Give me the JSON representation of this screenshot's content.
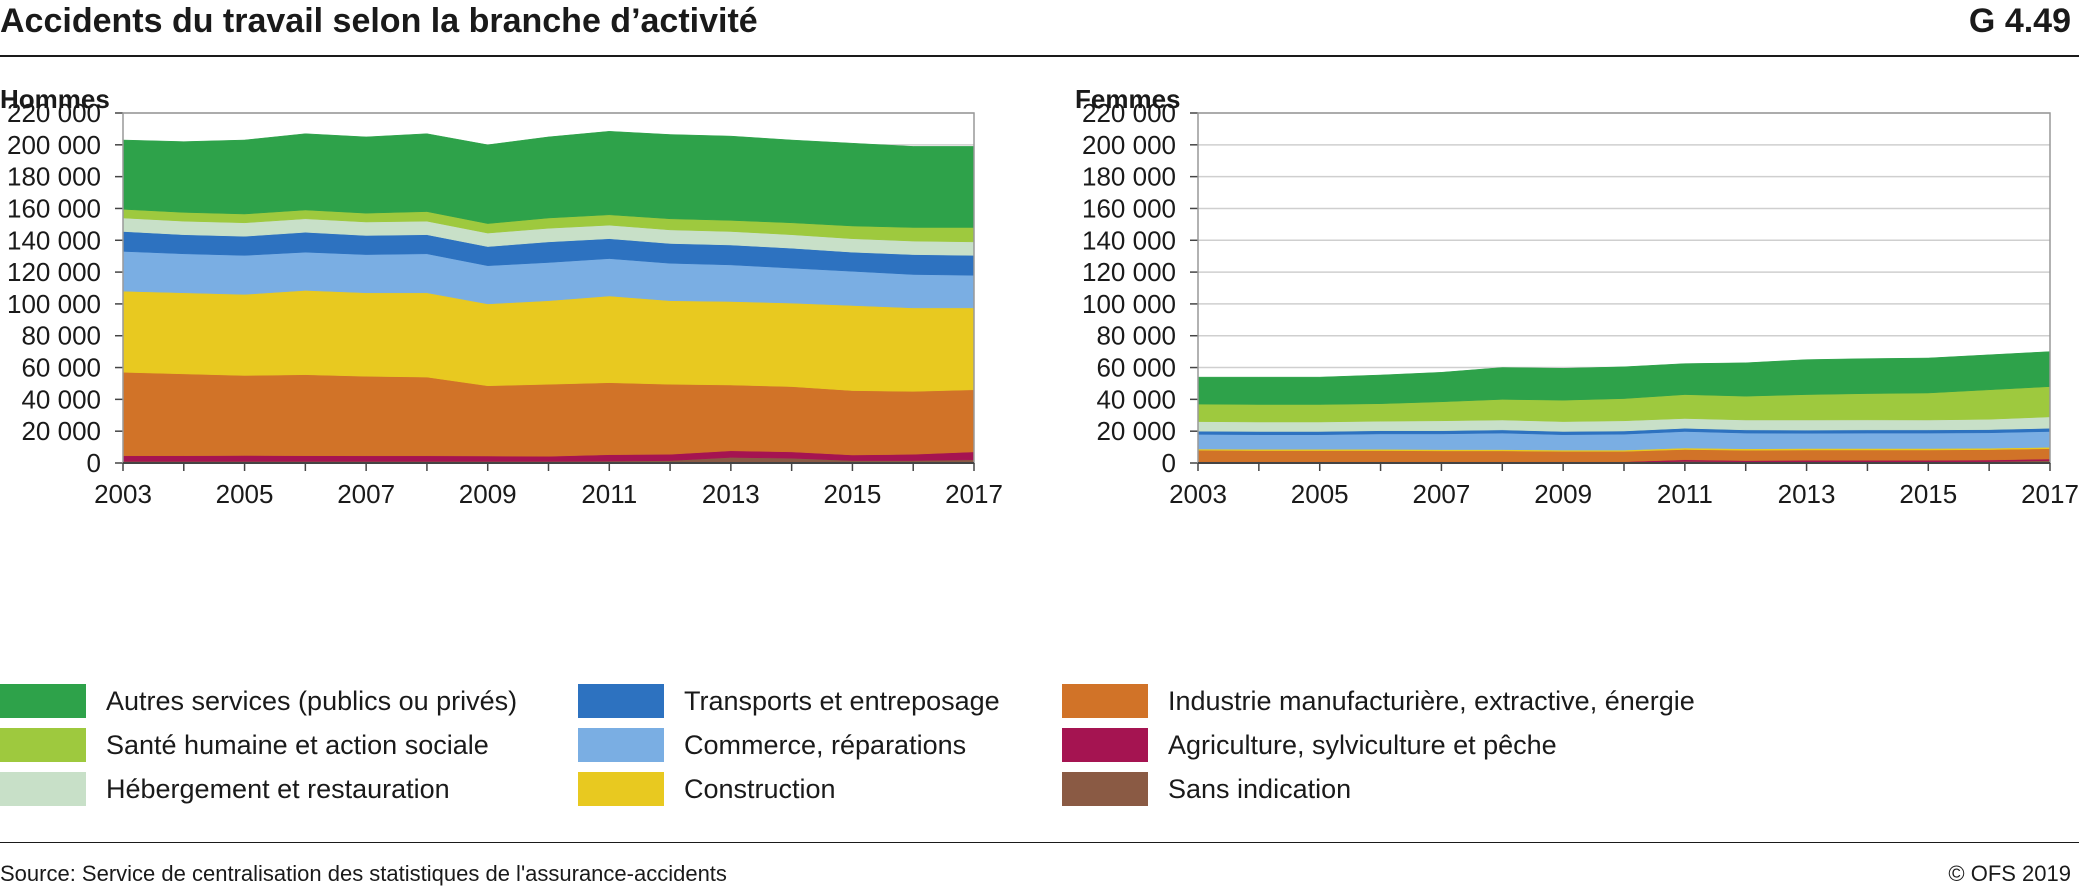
{
  "header": {
    "title": "Accidents du travail selon la branche d’activité",
    "code": "G 4.49"
  },
  "footer": {
    "source": "Source: Service de centralisation des statistiques de l'assurance-accidents",
    "copyright": "© OFS 2019"
  },
  "colors": {
    "sans": "#8a5a44",
    "agri": "#a51451",
    "indus": "#d17328",
    "constr": "#e8c920",
    "comm": "#7aaee3",
    "transp": "#2d72c0",
    "heberg": "#c8e0c8",
    "sante": "#9ec93e",
    "autres": "#2ea24a",
    "grid": "#cfcfcf",
    "axis": "#444444",
    "plot_border": "#999999"
  },
  "chart_data": [
    {
      "type": "area",
      "subtitle": "Hommes",
      "stacked": true,
      "x": [
        2003,
        2004,
        2005,
        2006,
        2007,
        2008,
        2009,
        2010,
        2011,
        2012,
        2013,
        2014,
        2015,
        2016,
        2017
      ],
      "xticks": [
        "2003",
        "2005",
        "2007",
        "2009",
        "2011",
        "2013",
        "2015",
        "2017"
      ],
      "ylim": [
        0,
        220000
      ],
      "yticks": [
        "0",
        "20 000",
        "40 000",
        "60 000",
        "80 000",
        "100 000",
        "120 000",
        "140 000",
        "160 000",
        "180 000",
        "200 000",
        "220 000"
      ],
      "grid": true,
      "series": [
        {
          "key": "sans",
          "name": "Sans indication",
          "values": [
            1000,
            1000,
            1000,
            1000,
            1000,
            1000,
            1000,
            1000,
            1200,
            1500,
            3500,
            3000,
            1500,
            1500,
            2000
          ]
        },
        {
          "key": "agri",
          "name": "Agriculture, sylviculture et pêche",
          "values": [
            3500,
            3600,
            3700,
            3600,
            3500,
            3500,
            3400,
            3200,
            4000,
            4000,
            4200,
            4000,
            3500,
            4000,
            5000
          ]
        },
        {
          "key": "indus",
          "name": "Industrie manufacturière, extractive, énergie",
          "values": [
            52500,
            51400,
            50300,
            50900,
            50000,
            49500,
            44100,
            45300,
            45300,
            44000,
            41300,
            41000,
            40500,
            39500,
            39000
          ]
        },
        {
          "key": "constr",
          "name": "Construction",
          "values": [
            51000,
            51000,
            51000,
            53000,
            52500,
            53000,
            51500,
            52500,
            54500,
            52500,
            52500,
            52500,
            53500,
            52500,
            51500
          ]
        },
        {
          "key": "comm",
          "name": "Commerce, réparations",
          "values": [
            25000,
            24500,
            24500,
            24000,
            24000,
            24500,
            24000,
            24000,
            23500,
            23500,
            23000,
            22000,
            21500,
            21000,
            20500
          ]
        },
        {
          "key": "transp",
          "name": "Transports et entreposage",
          "values": [
            12500,
            12000,
            12000,
            12500,
            12000,
            12000,
            12000,
            13000,
            12500,
            12500,
            12500,
            12500,
            12000,
            12500,
            12500
          ]
        },
        {
          "key": "heberg",
          "name": "Hébergement et restauration",
          "values": [
            8500,
            8500,
            8500,
            8500,
            8500,
            8500,
            8500,
            8500,
            8500,
            8500,
            8500,
            8500,
            8500,
            8500,
            8500
          ]
        },
        {
          "key": "sante",
          "name": "Santé humaine et action sociale",
          "values": [
            5500,
            5500,
            5500,
            5500,
            5500,
            6000,
            6000,
            6500,
            6500,
            7000,
            7000,
            7500,
            8000,
            8500,
            9000
          ]
        },
        {
          "key": "autres",
          "name": "Autres services (publics ou privés)",
          "values": [
            43500,
            44500,
            46500,
            48000,
            48000,
            49000,
            49500,
            51000,
            52500,
            53000,
            53000,
            52000,
            52000,
            51000,
            51000
          ]
        }
      ]
    },
    {
      "type": "area",
      "subtitle": "Femmes",
      "stacked": true,
      "x": [
        2003,
        2004,
        2005,
        2006,
        2007,
        2008,
        2009,
        2010,
        2011,
        2012,
        2013,
        2014,
        2015,
        2016,
        2017
      ],
      "xticks": [
        "2003",
        "2005",
        "2007",
        "2009",
        "2011",
        "2013",
        "2015",
        "2017"
      ],
      "ylim": [
        0,
        220000
      ],
      "yticks": [
        "0",
        "20 000",
        "40 000",
        "60 000",
        "80 000",
        "100 000",
        "120 000",
        "140 000",
        "160 000",
        "180 000",
        "200 000",
        "220 000"
      ],
      "grid": true,
      "series": [
        {
          "key": "sans",
          "name": "Sans indication",
          "values": [
            300,
            300,
            300,
            300,
            300,
            300,
            300,
            300,
            1000,
            800,
            800,
            800,
            800,
            900,
            1500
          ]
        },
        {
          "key": "agri",
          "name": "Agriculture, sylviculture et pêche",
          "values": [
            500,
            500,
            500,
            500,
            500,
            500,
            500,
            500,
            1000,
            700,
            900,
            900,
            900,
            1000,
            1000
          ]
        },
        {
          "key": "indus",
          "name": "Industrie manufacturière, extractive, énergie",
          "values": [
            7200,
            7000,
            7000,
            7000,
            6800,
            6800,
            6500,
            6500,
            6500,
            6500,
            6500,
            6500,
            6500,
            6500,
            6500
          ]
        },
        {
          "key": "constr",
          "name": "Construction",
          "values": [
            800,
            800,
            800,
            800,
            800,
            800,
            800,
            800,
            900,
            900,
            900,
            900,
            900,
            900,
            900
          ]
        },
        {
          "key": "comm",
          "name": "Commerce, réparations",
          "values": [
            9200,
            9200,
            9200,
            9700,
            9900,
            10400,
            9700,
            10000,
            10400,
            9900,
            9600,
            9700,
            9700,
            9700,
            9900
          ]
        },
        {
          "key": "transp",
          "name": "Transports et entreposage",
          "values": [
            2000,
            2000,
            2000,
            2000,
            2000,
            2000,
            2000,
            2000,
            2000,
            2000,
            2000,
            2000,
            2000,
            2000,
            2000
          ]
        },
        {
          "key": "heberg",
          "name": "Hébergement et restauration",
          "values": [
            6000,
            6000,
            6000,
            6000,
            6200,
            6200,
            6200,
            6400,
            6200,
            6200,
            6300,
            6300,
            6200,
            6500,
            7200
          ]
        },
        {
          "key": "sante",
          "name": "Santé humaine et action sociale",
          "values": [
            11000,
            11000,
            11000,
            11000,
            12000,
            13000,
            13500,
            14000,
            15000,
            15000,
            16000,
            16500,
            17000,
            18500,
            19000
          ]
        },
        {
          "key": "autres",
          "name": "Autres services (publics ou privés)",
          "values": [
            17000,
            17200,
            17200,
            18000,
            18500,
            20000,
            20000,
            20000,
            19500,
            21000,
            22000,
            22000,
            22000,
            22000,
            22000
          ]
        }
      ]
    }
  ],
  "legend": [
    {
      "key": "autres",
      "label": "Autres services (publics ou privés)"
    },
    {
      "key": "sante",
      "label": "Santé humaine et action sociale"
    },
    {
      "key": "heberg",
      "label": "Hébergement et restauration"
    },
    {
      "key": "transp",
      "label": "Transports et entreposage"
    },
    {
      "key": "comm",
      "label": "Commerce, réparations"
    },
    {
      "key": "constr",
      "label": "Construction"
    },
    {
      "key": "indus",
      "label": "Industrie manufacturière, extractive, énergie"
    },
    {
      "key": "agri",
      "label": "Agriculture, sylviculture et pêche"
    },
    {
      "key": "sans",
      "label": "Sans indication"
    }
  ]
}
